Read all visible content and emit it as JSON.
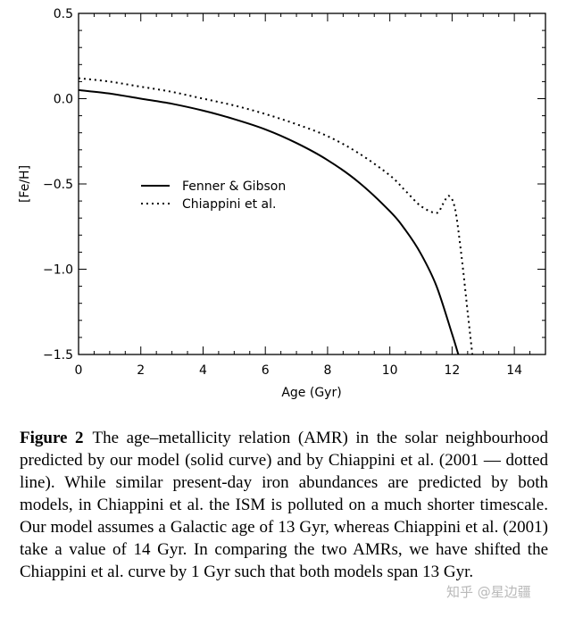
{
  "chart_data": {
    "type": "line",
    "xlabel": "Age (Gyr)",
    "ylabel": "[Fe/H]",
    "xlim": [
      0,
      15
    ],
    "ylim": [
      -1.5,
      0.5
    ],
    "xticks": [
      0,
      2,
      4,
      6,
      8,
      10,
      12,
      14
    ],
    "yticks": [
      0.5,
      0.0,
      -0.5,
      -1.0,
      -1.5
    ],
    "ytick_labels": [
      "0.5",
      "0.0",
      "−0.5",
      "−1.0",
      "−1.5"
    ],
    "grid": false,
    "legend_position": "middle-left",
    "series": [
      {
        "name": "Fenner & Gibson",
        "style": "solid",
        "color": "#000000",
        "x": [
          0,
          1,
          2,
          3,
          4,
          5,
          6,
          7,
          8,
          9,
          10,
          10.5,
          11,
          11.5,
          12,
          12.2
        ],
        "y": [
          0.05,
          0.03,
          0.0,
          -0.03,
          -0.07,
          -0.12,
          -0.18,
          -0.26,
          -0.36,
          -0.49,
          -0.66,
          -0.77,
          -0.91,
          -1.1,
          -1.38,
          -1.5
        ]
      },
      {
        "name": "Chiappini et al.",
        "style": "dotted",
        "color": "#000000",
        "x": [
          0,
          1,
          2,
          3,
          4,
          5,
          6,
          7,
          8,
          9,
          10,
          10.5,
          11,
          11.5,
          11.7,
          11.9,
          12.1,
          12.3,
          12.5,
          12.65
        ],
        "y": [
          0.12,
          0.1,
          0.07,
          0.04,
          0.0,
          -0.04,
          -0.09,
          -0.15,
          -0.22,
          -0.32,
          -0.45,
          -0.54,
          -0.63,
          -0.67,
          -0.62,
          -0.57,
          -0.65,
          -0.92,
          -1.25,
          -1.5
        ]
      }
    ]
  },
  "caption": {
    "label": "Figure 2",
    "text": "The age–metallicity relation (AMR) in the solar neighbourhood predicted by our model (solid curve) and by Chiappini et al. (2001 — dotted line). While similar present-day iron abundances are predicted by both models, in Chiappini et al. the ISM is polluted on a much shorter timescale. Our model assumes a Galactic age of 13 Gyr, whereas Chiappini et al. (2001) take a value of 14 Gyr. In comparing the two AMRs, we have shifted the Chiappini et al. curve by 1 Gyr such that both models span 13 Gyr."
  },
  "watermark": "知乎 @星边疆"
}
